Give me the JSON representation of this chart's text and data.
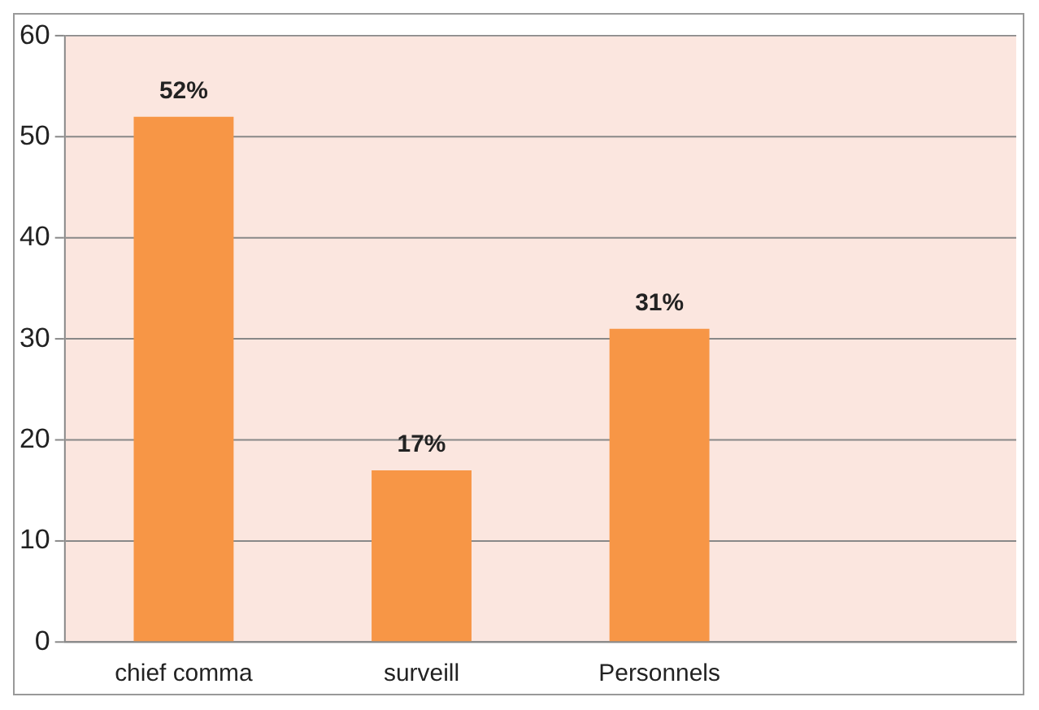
{
  "chart_data": {
    "type": "bar",
    "categories": [
      "chief comma",
      "surveill",
      "Personnels",
      null
    ],
    "values": [
      52,
      17,
      31,
      null
    ],
    "value_labels": [
      "52%",
      "17%",
      "31%",
      null
    ],
    "color": "#f79646",
    "ylim": [
      0,
      60
    ],
    "yticks": [
      0,
      10,
      20,
      30,
      40,
      50,
      60
    ],
    "grid": "y"
  }
}
